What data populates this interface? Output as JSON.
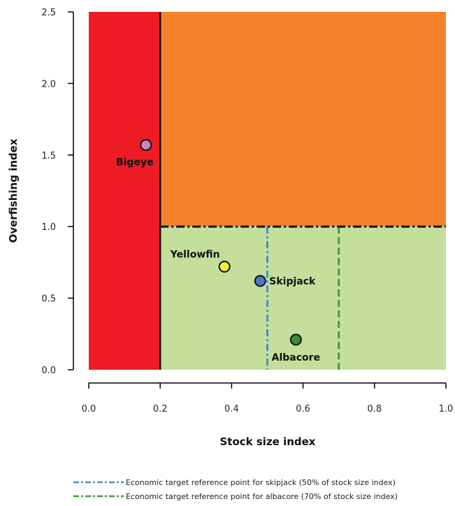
{
  "chart_data": {
    "type": "scatter",
    "xlabel": "Stock size index",
    "ylabel": "Overfishing index",
    "xlim": [
      0.0,
      1.0
    ],
    "ylim": [
      0.0,
      2.5
    ],
    "x_ticks": [
      "0.0",
      "0.2",
      "0.4",
      "0.6",
      "0.8",
      "1.0"
    ],
    "y_ticks": [
      "0.0",
      "0.5",
      "1.0",
      "1.5",
      "2.0",
      "2.5"
    ],
    "limit_reference_point": {
      "stock_size_index": 0.2,
      "color": "#ed1c24"
    },
    "overfishing_limit": {
      "overfishing_index": 1.0,
      "color_above": "#f5822a",
      "color_below": "#c3df9b"
    },
    "points": [
      {
        "name": "Bigeye",
        "x": 0.16,
        "y": 1.57,
        "color": "#c985c2",
        "label_pos": "below-left"
      },
      {
        "name": "Yellowfin",
        "x": 0.38,
        "y": 0.72,
        "color": "#f5ec42",
        "label_pos": "above-left"
      },
      {
        "name": "Skipjack",
        "x": 0.48,
        "y": 0.62,
        "color": "#4a78c2",
        "label_pos": "right"
      },
      {
        "name": "Albacore",
        "x": 0.58,
        "y": 0.21,
        "color": "#3b8a3e",
        "label_pos": "below"
      }
    ],
    "reference_lines": [
      {
        "x": 0.5,
        "color": "#4a8fc9",
        "legend": "Economic target reference point for skipjack (50% of stock size index)"
      },
      {
        "x": 0.7,
        "color": "#3f9a3f",
        "legend": "Economic target reference point for albacore (70% of stock size index)"
      }
    ],
    "legend_position": "bottom",
    "grid": false
  }
}
